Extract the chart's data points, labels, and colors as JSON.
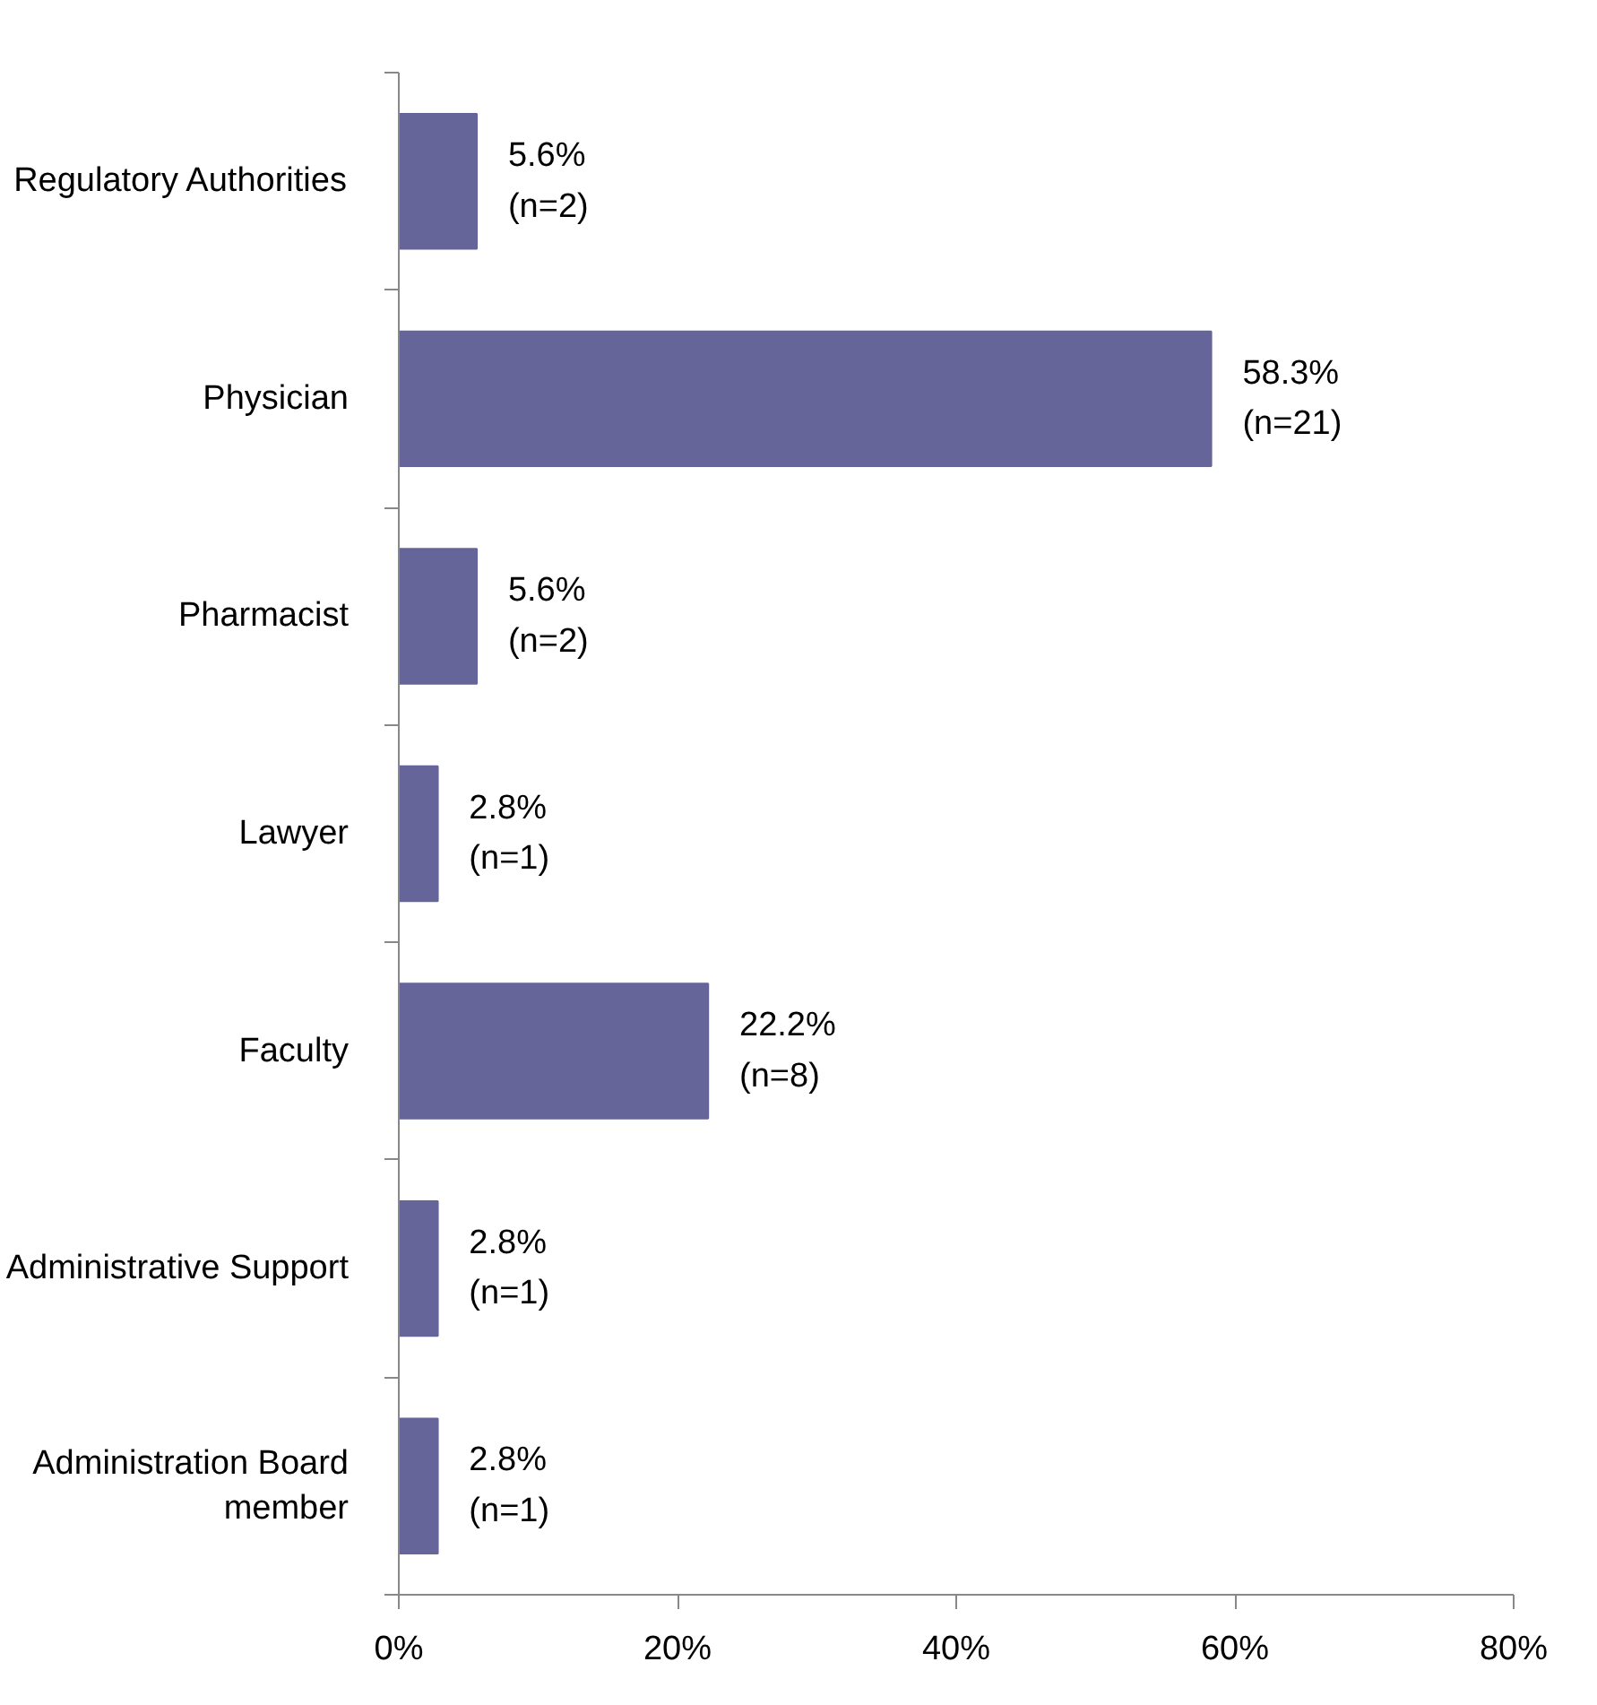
{
  "chart_data": {
    "type": "bar",
    "orientation": "horizontal",
    "categories": [
      "Regulatory Authorities",
      "Physician",
      "Pharmacist",
      "Lawyer",
      "Faculty",
      "Administrative Support",
      "Administration Board member"
    ],
    "values": [
      5.6,
      58.3,
      5.6,
      2.8,
      22.2,
      2.8,
      2.8
    ],
    "value_labels": [
      "5.6% (n=2)",
      "58.3% (n=21)",
      "5.6% (n=2)",
      "2.8% (n=1)",
      "22.2% (n=8)",
      "2.8% (n=1)",
      "2.8% (n=1)"
    ],
    "color": "#65659a",
    "xlim": [
      0,
      80
    ],
    "xticks": [
      {
        "value": 0,
        "label": "0%"
      },
      {
        "value": 20,
        "label": "20%"
      },
      {
        "value": 40,
        "label": "40%"
      },
      {
        "value": 60,
        "label": "60%"
      },
      {
        "value": 80,
        "label": "80%"
      }
    ],
    "grid": false
  }
}
